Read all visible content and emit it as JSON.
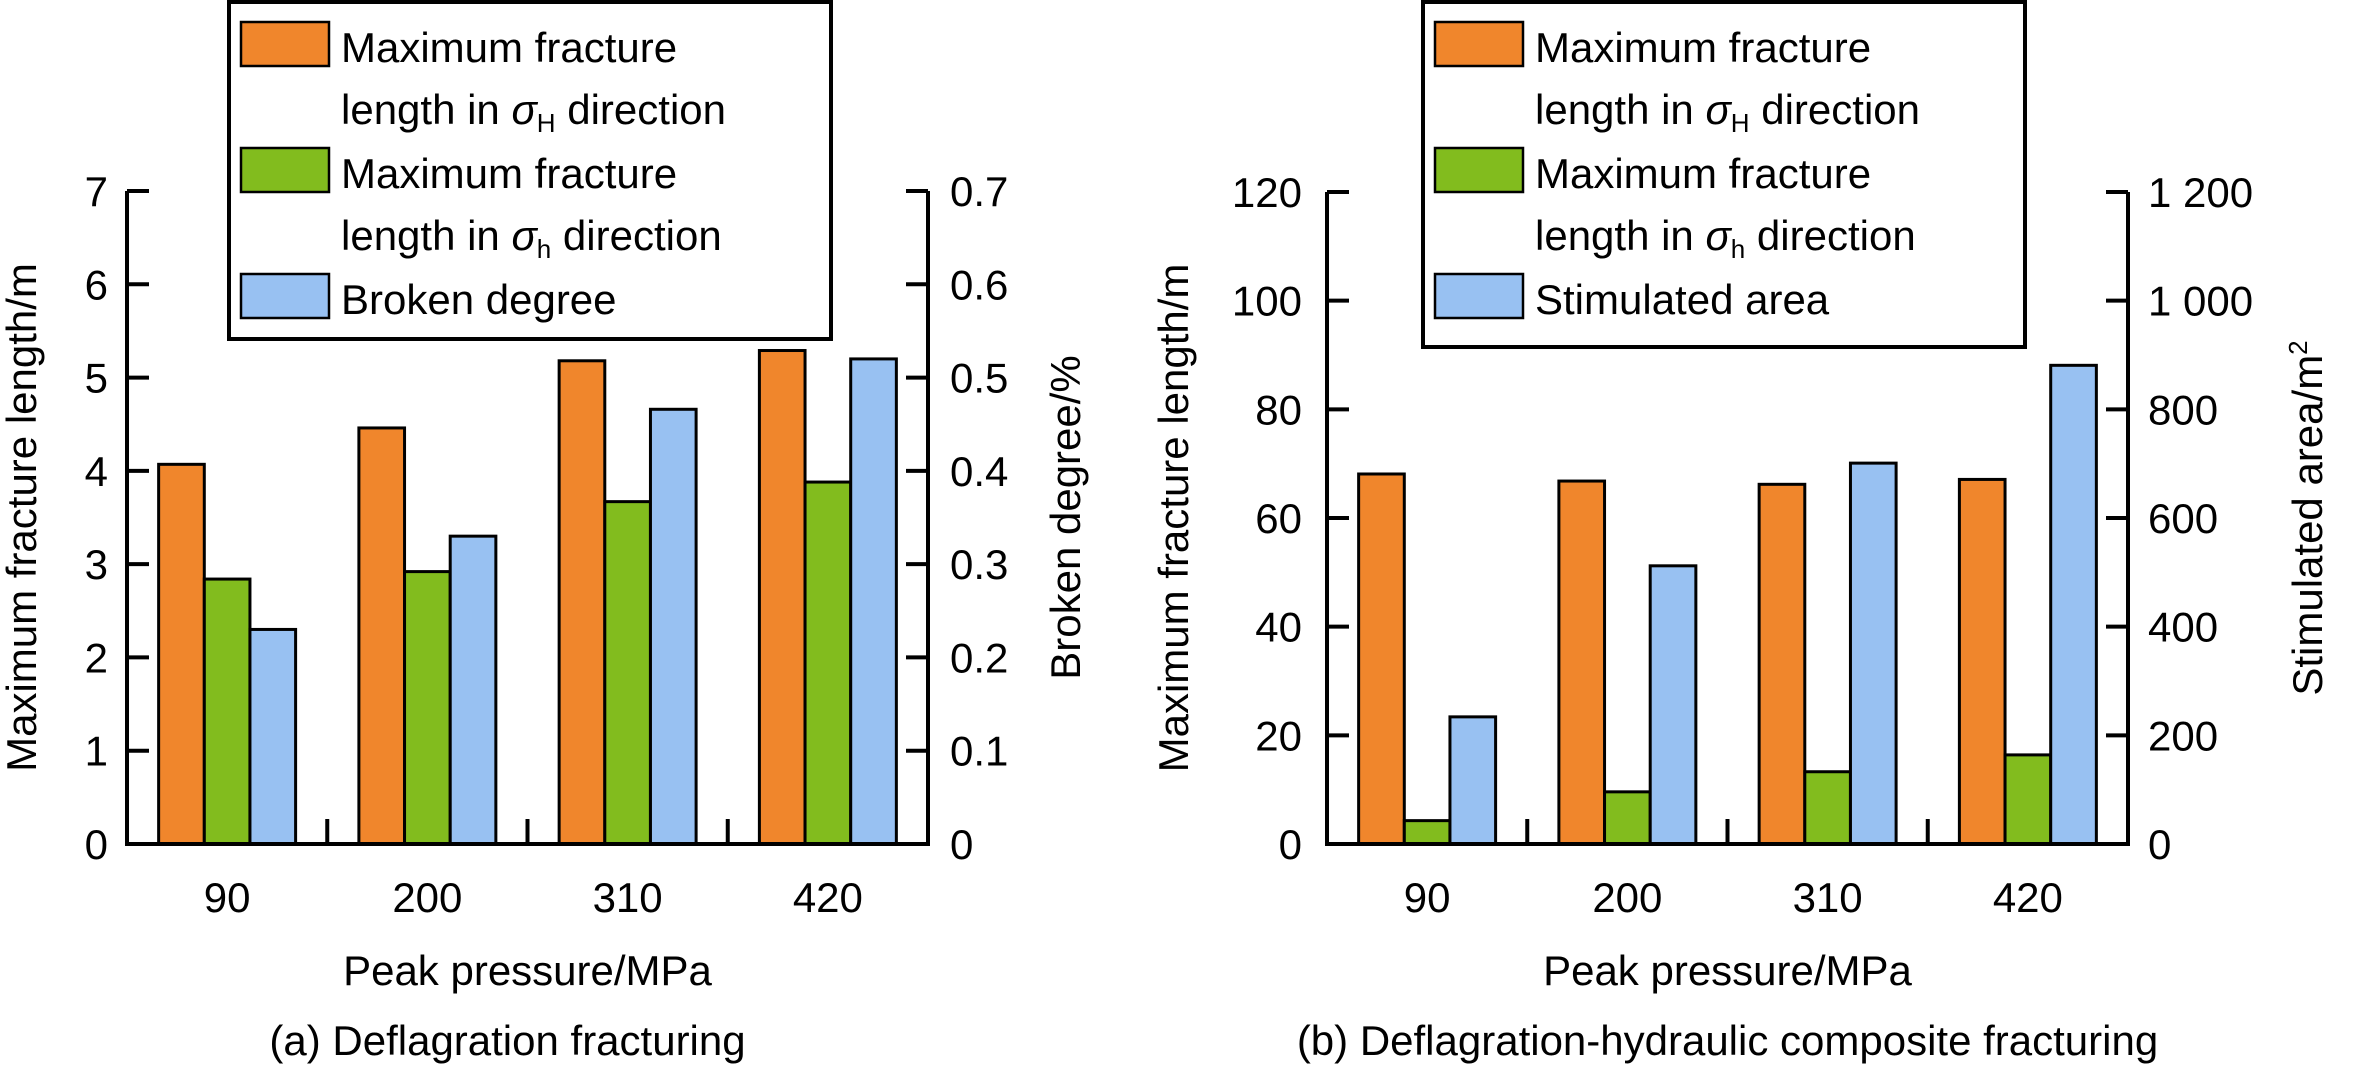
{
  "chart_data": [
    {
      "type": "bar",
      "panel_caption": "(a) Deflagration fracturing",
      "xlabel": "Peak pressure/MPa",
      "ylabel": "Maximum fracture length/m",
      "y2label": "Broken degree/%",
      "categories": [
        "90",
        "200",
        "310",
        "420"
      ],
      "ylim": [
        0,
        7
      ],
      "yticks": [
        "0",
        "1",
        "2",
        "3",
        "4",
        "5",
        "6",
        "7"
      ],
      "ytick_values": [
        0,
        1,
        2,
        3,
        4,
        5,
        6,
        7
      ],
      "y2lim": [
        0,
        0.7
      ],
      "y2ticks": [
        "0",
        "0.1",
        "0.2",
        "0.3",
        "0.4",
        "0.5",
        "0.6",
        "0.7"
      ],
      "y2tick_values": [
        0,
        0.1,
        0.2,
        0.3,
        0.4,
        0.5,
        0.6,
        0.7
      ],
      "grid": false,
      "legend_position": "top-center",
      "series": [
        {
          "name": "Maximum fracture length in σH direction",
          "legend_line1": "Maximum fracture",
          "legend_line2_pre": "length in ",
          "legend_sym": "σ",
          "legend_sub": "H",
          "legend_line2_post": " direction",
          "axis": "left",
          "color": "#F0862C",
          "values": [
            4.07,
            4.46,
            5.18,
            5.29
          ]
        },
        {
          "name": "Maximum fracture length in σh direction",
          "legend_line1": "Maximum fracture",
          "legend_line2_pre": "length in ",
          "legend_sym": "σ",
          "legend_sub": "h",
          "legend_line2_post": " direction",
          "axis": "left",
          "color": "#82BC1E",
          "values": [
            2.84,
            2.92,
            3.67,
            3.88
          ]
        },
        {
          "name": "Broken degree",
          "legend_line1": "Broken degree",
          "axis": "right",
          "color": "#98C1F2",
          "values": [
            0.23,
            0.33,
            0.466,
            0.52
          ]
        }
      ]
    },
    {
      "type": "bar",
      "panel_caption": "(b) Deflagration-hydraulic composite fracturing",
      "xlabel": "Peak pressure/MPa",
      "ylabel": "Maximum fracture length/m",
      "y2label": "Stimulated area/m",
      "y2label_sup": "2",
      "categories": [
        "90",
        "200",
        "310",
        "420"
      ],
      "ylim": [
        0,
        120
      ],
      "yticks": [
        "0",
        "20",
        "40",
        "60",
        "80",
        "100",
        "120"
      ],
      "ytick_values": [
        0,
        20,
        40,
        60,
        80,
        100,
        120
      ],
      "y2lim": [
        0,
        1200
      ],
      "y2ticks": [
        "0",
        "200",
        "400",
        "600",
        "800",
        "1 000",
        "1 200"
      ],
      "y2tick_values": [
        0,
        200,
        400,
        600,
        800,
        1000,
        1200
      ],
      "grid": false,
      "legend_position": "top-center",
      "series": [
        {
          "name": "Maximum fracture length in σH direction",
          "legend_line1": "Maximum fracture",
          "legend_line2_pre": "length in ",
          "legend_sym": "σ",
          "legend_sub": "H",
          "legend_line2_post": " direction",
          "axis": "left",
          "color": "#F0862C",
          "values": [
            68.1,
            66.8,
            66.2,
            67.1
          ]
        },
        {
          "name": "Maximum fracture length in σh direction",
          "legend_line1": "Maximum fracture",
          "legend_line2_pre": "length in ",
          "legend_sym": "σ",
          "legend_sub": "h",
          "legend_line2_post": " direction",
          "axis": "left",
          "color": "#82BC1E",
          "values": [
            4.3,
            9.6,
            13.3,
            16.4
          ]
        },
        {
          "name": "Stimulated area",
          "legend_line1": "Stimulated area",
          "axis": "right",
          "color": "#98C1F2",
          "values": [
            234,
            512,
            701,
            881
          ]
        }
      ]
    }
  ]
}
